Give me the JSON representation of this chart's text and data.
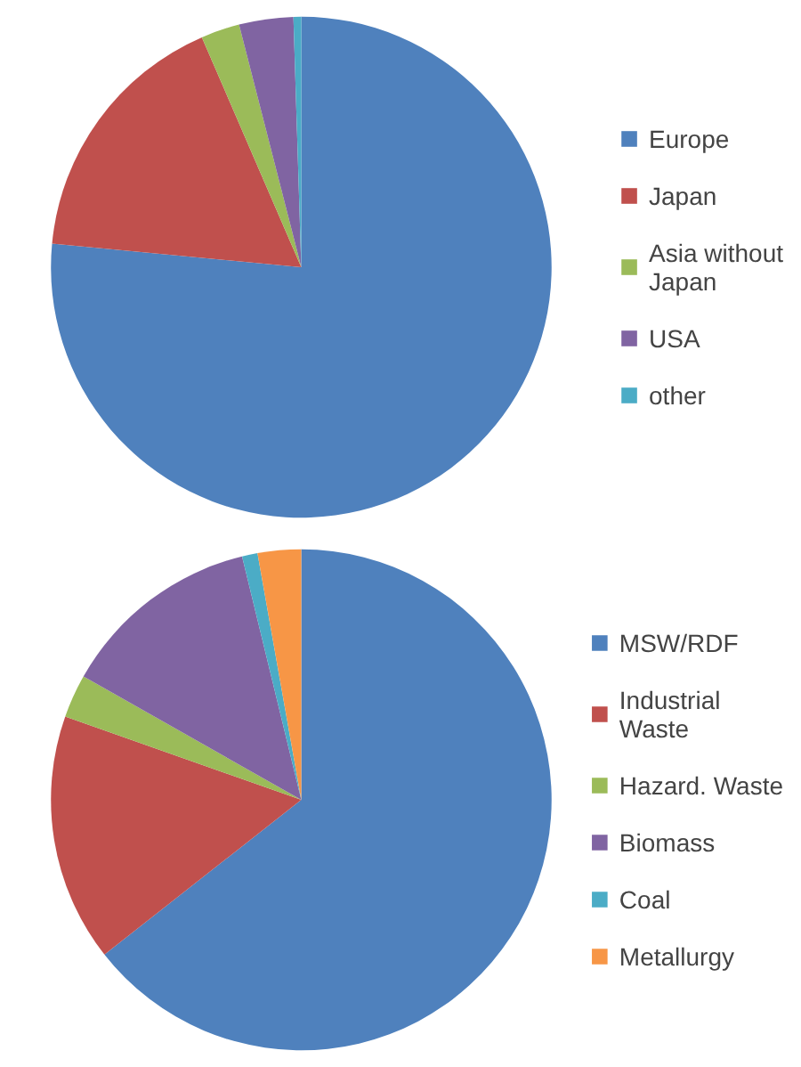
{
  "chart_data": [
    {
      "type": "pie",
      "categories": [
        "Europe",
        "Japan",
        "Asia without Japan",
        "USA",
        "other"
      ],
      "values": [
        76.5,
        17,
        2.5,
        3.5,
        0.5
      ],
      "colors": [
        "#4f81bd",
        "#c0504d",
        "#9bbb59",
        "#8064a2",
        "#4bacc6"
      ],
      "legend": "right"
    },
    {
      "type": "pie",
      "categories": [
        "MSW/RDF",
        "Industrial Waste",
        "Hazard. Waste",
        "Biomass",
        "Coal",
        "Metallurgy"
      ],
      "values": [
        64.4,
        16,
        2.8,
        13,
        1,
        2.8
      ],
      "colors": [
        "#4f81bd",
        "#c0504d",
        "#9bbb59",
        "#8064a2",
        "#4bacc6",
        "#f79646"
      ],
      "legend": "right"
    }
  ]
}
